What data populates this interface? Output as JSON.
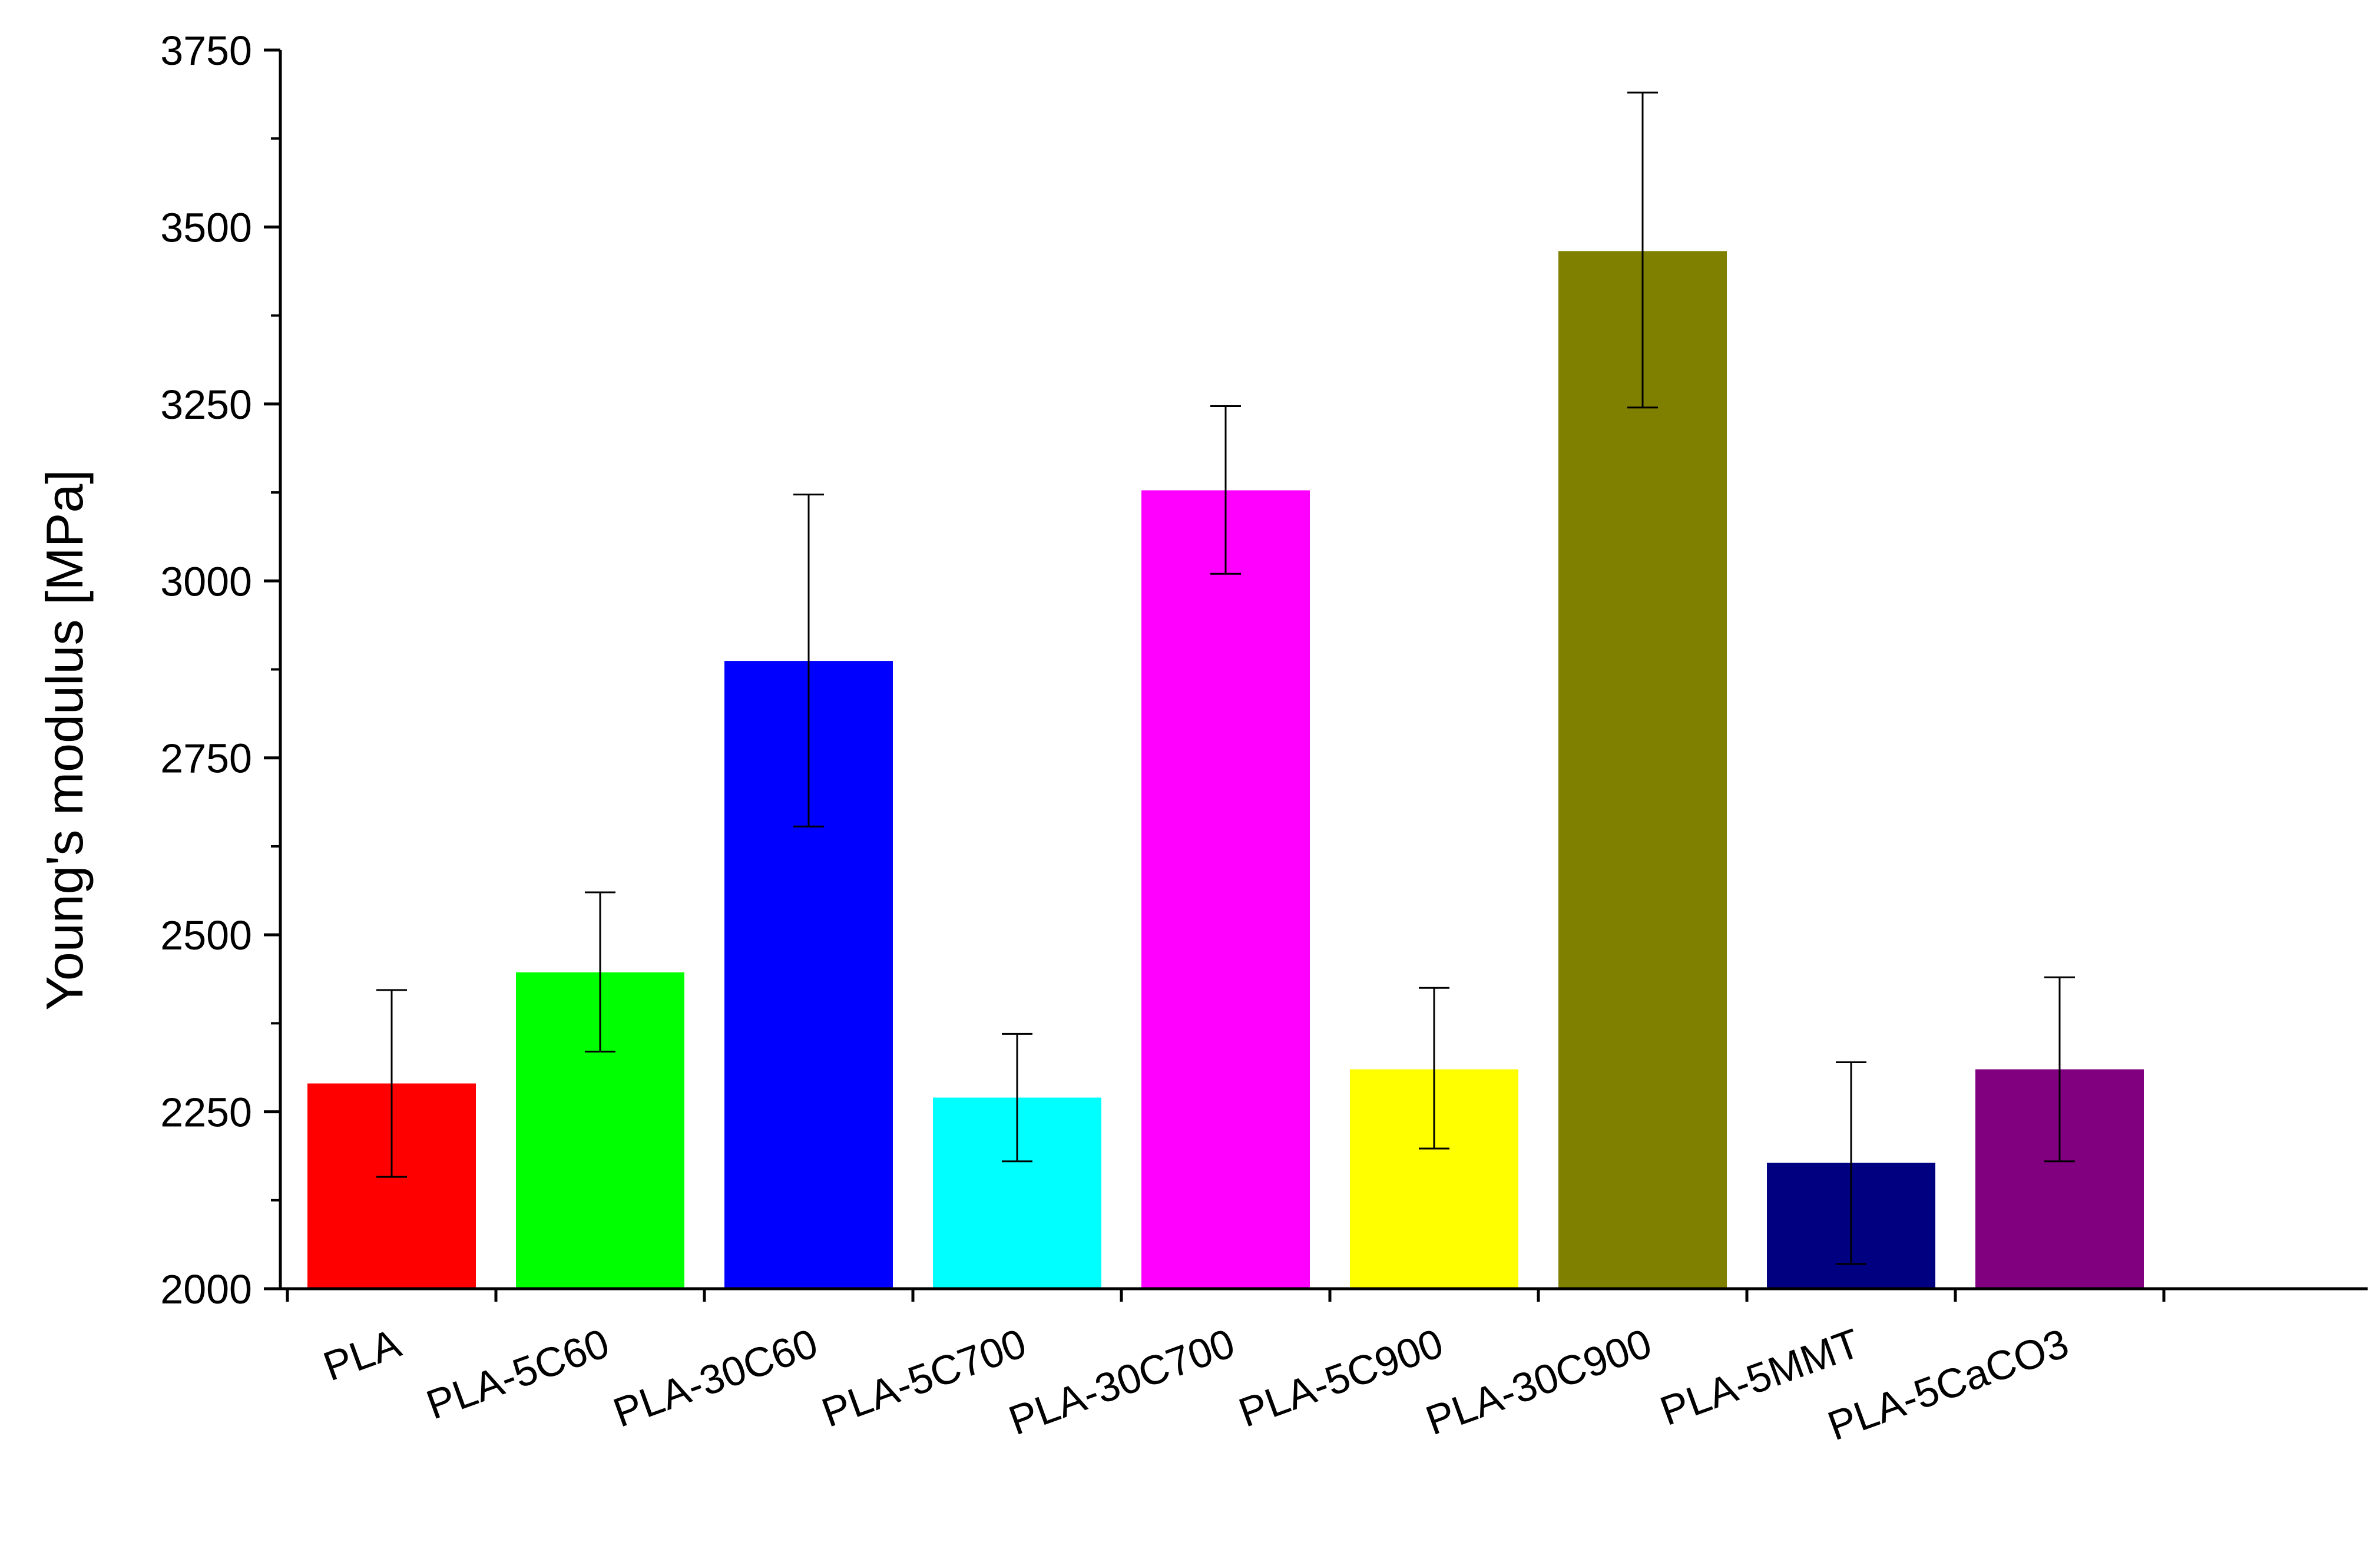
{
  "chart_data": {
    "type": "bar",
    "title": "",
    "xlabel": "",
    "ylabel": "Young's modulus [MPa]",
    "ylim": [
      2000,
      3750
    ],
    "yticks": [
      2000,
      2250,
      2500,
      2750,
      3000,
      3250,
      3500,
      3750
    ],
    "grid": false,
    "legend": "none",
    "categories": [
      "PLA",
      "PLA-5C60",
      "PLA-30C60",
      "PLA-5C700",
      "PLA-30C700",
      "PLA-5C900",
      "PLA-30C900",
      "PLA-5MMT",
      "PLA-5CaCO3"
    ],
    "values": [
      2290,
      2447,
      2887,
      2270,
      3128,
      2310,
      3466,
      2178,
      2310
    ],
    "error_upper": [
      2422,
      2560,
      3122,
      2360,
      3247,
      2425,
      3690,
      2320,
      2440
    ],
    "error_lower": [
      2158,
      2335,
      2653,
      2180,
      3010,
      2198,
      3245,
      2035,
      2180
    ],
    "colors": [
      "#ff0000",
      "#00ff00",
      "#0000ff",
      "#00ffff",
      "#ff00ff",
      "#ffff00",
      "#808000",
      "#000080",
      "#800080"
    ]
  }
}
